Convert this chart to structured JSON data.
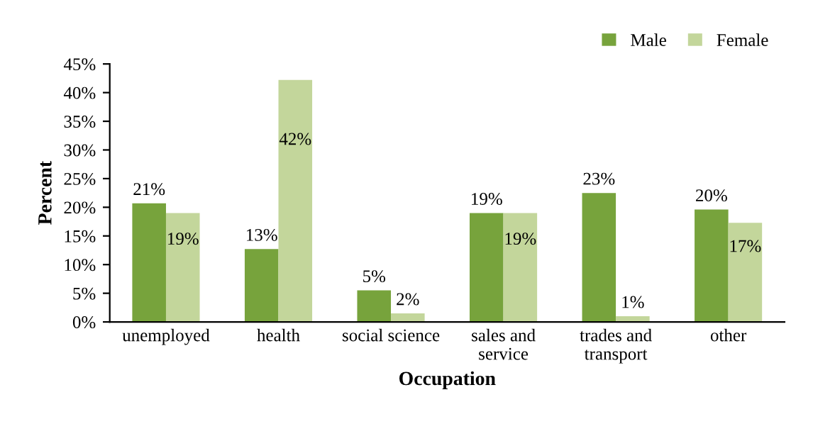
{
  "chart_data": {
    "type": "bar",
    "xlabel": "Occupation",
    "ylabel": "Percent",
    "categories": [
      "unemployed",
      "health",
      "social science",
      "sales and\nservice",
      "trades and\ntransport",
      "other"
    ],
    "series": [
      {
        "name": "Male",
        "color": "#77a33c",
        "values": [
          20.7,
          12.7,
          5.5,
          19,
          22.5,
          19.6
        ],
        "value_labels": [
          "21%",
          "13%",
          "5%",
          "19%",
          "23%",
          "20%"
        ]
      },
      {
        "name": "Female",
        "color": "#c3d69b",
        "values": [
          19,
          42.2,
          1.5,
          19,
          1,
          17.3
        ],
        "value_labels": [
          "19%",
          "42%",
          "2%",
          "19%",
          "1%",
          "17%"
        ]
      }
    ],
    "ylim": [
      0,
      45
    ],
    "yticks": [
      {
        "value": 0,
        "label": "0%"
      },
      {
        "value": 5,
        "label": "5%"
      },
      {
        "value": 10,
        "label": "10%"
      },
      {
        "value": 15,
        "label": "15%"
      },
      {
        "value": 20,
        "label": "20%"
      },
      {
        "value": 25,
        "label": "25%"
      },
      {
        "value": 30,
        "label": "30%"
      },
      {
        "value": 35,
        "label": "35%"
      },
      {
        "value": 40,
        "label": "40%"
      },
      {
        "value": 45,
        "label": "45%"
      }
    ],
    "grid": false,
    "legend": "top right"
  }
}
